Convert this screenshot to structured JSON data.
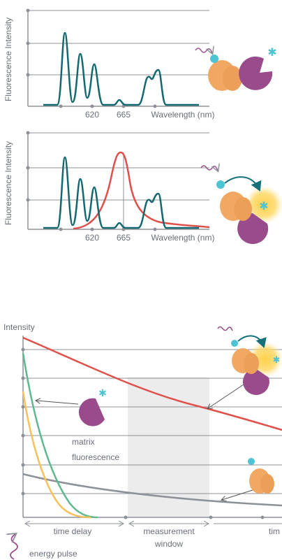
{
  "panels": [
    {
      "y_label": "Fluorescence Intensity",
      "x_labels": [
        "620",
        "665"
      ],
      "x_title": "Wavelength (nm)"
    },
    {
      "y_label": "Fluorescence Intensity",
      "x_labels": [
        "620",
        "665"
      ],
      "x_title": "Wavelength (nm)"
    }
  ],
  "decay": {
    "y_label": "Intensity",
    "matrix_label": [
      "matrix",
      "fluorescence"
    ],
    "window_label": [
      "measurement",
      "window"
    ],
    "delay_label": "time delay",
    "time_label": "tim",
    "pulse_label": "energy pulse"
  }
}
